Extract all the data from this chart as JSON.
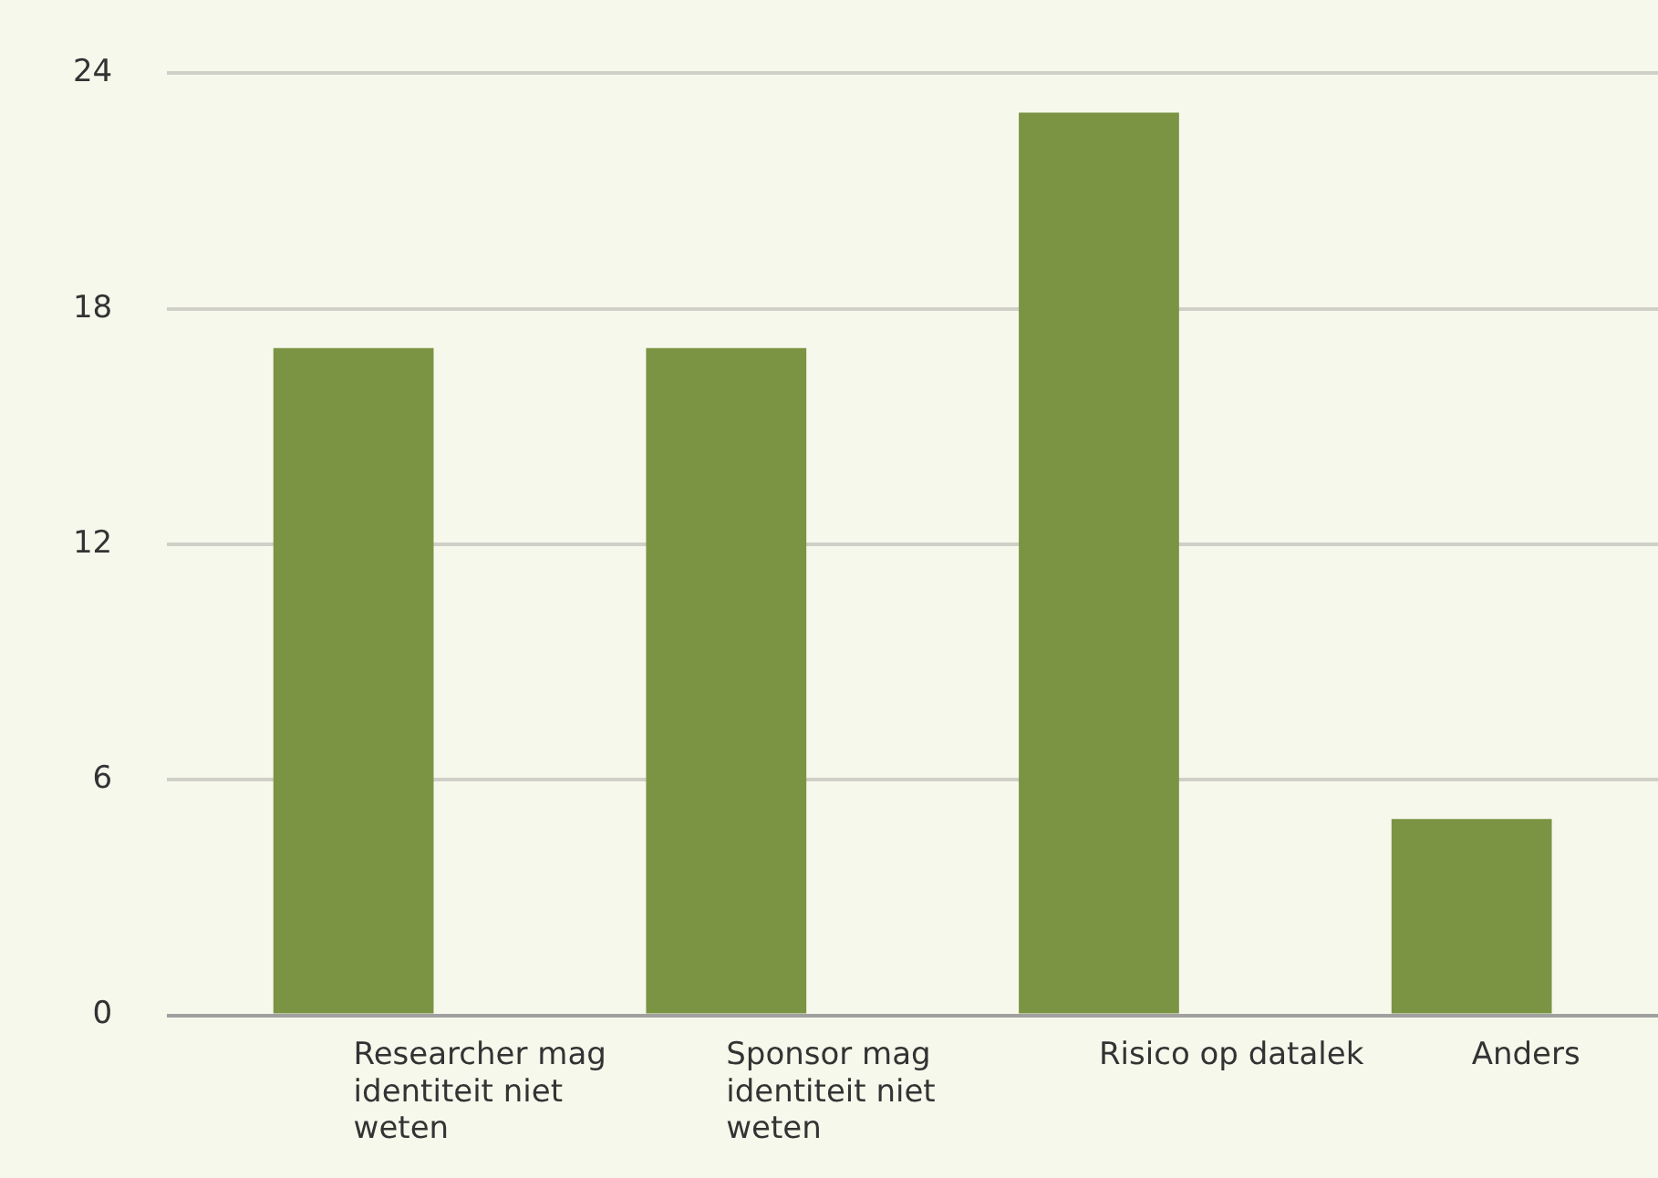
{
  "chart_data": {
    "type": "bar",
    "categories": [
      "Researcher mag identiteit niet weten",
      "Sponsor mag identiteit niet weten",
      "Risico op datalek",
      "Anders"
    ],
    "values": [
      17,
      17,
      23,
      5
    ],
    "color": "#7a9444",
    "ylim": [
      0,
      24
    ],
    "yticks": [
      0,
      6,
      12,
      18,
      24
    ],
    "grid": "y",
    "legend": false
  }
}
